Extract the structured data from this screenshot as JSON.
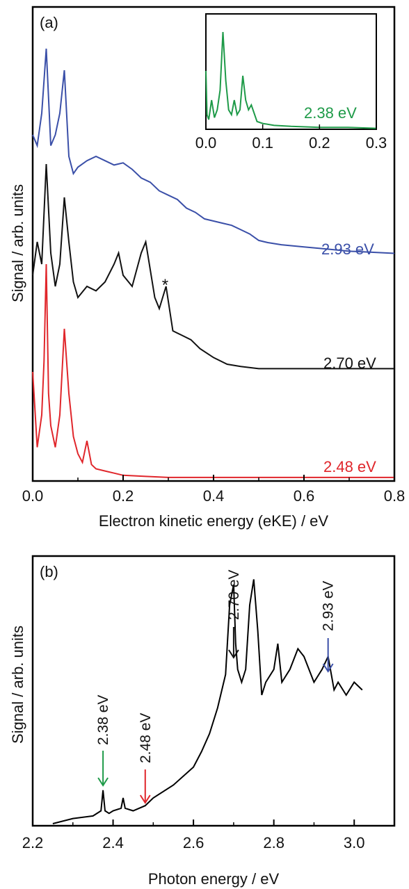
{
  "chart_data": [
    {
      "panel": "(a)",
      "type": "line",
      "xlabel": "Electron kinetic energy (eKE) / eV",
      "ylabel": "Signal / arb. units",
      "xlim": [
        0.0,
        0.8
      ],
      "xticks": [
        "0.0",
        "0.2",
        "0.4",
        "0.6",
        "0.8"
      ],
      "annotation": "*",
      "annotation_x": 0.295,
      "colors": {
        "2.93 eV": "#3a4fa8",
        "2.70 eV": "#111111",
        "2.48 eV": "#e0262b"
      },
      "series": [
        {
          "name": "2.93 eV",
          "x": [
            0.0,
            0.01,
            0.02,
            0.03,
            0.04,
            0.05,
            0.06,
            0.07,
            0.08,
            0.09,
            0.1,
            0.12,
            0.14,
            0.16,
            0.18,
            0.2,
            0.22,
            0.24,
            0.26,
            0.28,
            0.3,
            0.32,
            0.34,
            0.36,
            0.38,
            0.4,
            0.42,
            0.44,
            0.46,
            0.48,
            0.5,
            0.52,
            0.55,
            0.6,
            0.65,
            0.7,
            0.75,
            0.8
          ],
          "y": [
            0.6,
            0.55,
            0.7,
            1.0,
            0.55,
            0.6,
            0.7,
            0.9,
            0.5,
            0.42,
            0.45,
            0.48,
            0.5,
            0.48,
            0.46,
            0.47,
            0.44,
            0.4,
            0.38,
            0.34,
            0.32,
            0.3,
            0.26,
            0.24,
            0.21,
            0.2,
            0.19,
            0.18,
            0.16,
            0.14,
            0.11,
            0.1,
            0.09,
            0.08,
            0.07,
            0.06,
            0.055,
            0.05
          ]
        },
        {
          "name": "2.70 eV",
          "x": [
            0.0,
            0.01,
            0.02,
            0.03,
            0.04,
            0.05,
            0.06,
            0.07,
            0.08,
            0.09,
            0.1,
            0.12,
            0.14,
            0.16,
            0.18,
            0.19,
            0.2,
            0.22,
            0.24,
            0.25,
            0.27,
            0.28,
            0.295,
            0.31,
            0.33,
            0.35,
            0.37,
            0.4,
            0.43,
            0.46,
            0.5,
            0.55,
            0.6,
            0.65,
            0.7,
            0.75,
            0.8
          ],
          "y": [
            0.45,
            0.6,
            0.5,
            0.95,
            0.55,
            0.4,
            0.5,
            0.8,
            0.6,
            0.42,
            0.35,
            0.4,
            0.38,
            0.42,
            0.5,
            0.55,
            0.45,
            0.4,
            0.55,
            0.6,
            0.35,
            0.3,
            0.4,
            0.2,
            0.18,
            0.16,
            0.12,
            0.08,
            0.05,
            0.04,
            0.03,
            0.03,
            0.03,
            0.03,
            0.03,
            0.03,
            0.03
          ]
        },
        {
          "name": "2.48 eV",
          "x": [
            0.0,
            0.01,
            0.02,
            0.025,
            0.03,
            0.035,
            0.04,
            0.05,
            0.06,
            0.07,
            0.08,
            0.09,
            0.1,
            0.11,
            0.12,
            0.13,
            0.14,
            0.16,
            0.18,
            0.2,
            0.25,
            0.3,
            0.4,
            0.5,
            0.6,
            0.7,
            0.8
          ],
          "y": [
            0.5,
            0.15,
            0.3,
            0.55,
            1.0,
            0.4,
            0.25,
            0.15,
            0.3,
            0.7,
            0.4,
            0.2,
            0.12,
            0.08,
            0.18,
            0.07,
            0.05,
            0.04,
            0.03,
            0.02,
            0.015,
            0.01,
            0.01,
            0.01,
            0.01,
            0.01,
            0.01
          ]
        }
      ],
      "inset": {
        "type": "line",
        "xlim": [
          0.0,
          0.3
        ],
        "xticks": [
          "0.0",
          "0.1",
          "0.2",
          "0.3"
        ],
        "series": [
          {
            "name": "2.38 eV",
            "color": "#1e9a48",
            "x": [
              0.0,
              0.002,
              0.005,
              0.01,
              0.015,
              0.02,
              0.025,
              0.03,
              0.035,
              0.04,
              0.045,
              0.05,
              0.055,
              0.06,
              0.065,
              0.07,
              0.075,
              0.08,
              0.09,
              0.1,
              0.12,
              0.15,
              0.2,
              0.25,
              0.3
            ],
            "y": [
              0.6,
              0.15,
              0.1,
              0.3,
              0.12,
              0.2,
              0.4,
              1.0,
              0.5,
              0.2,
              0.15,
              0.3,
              0.15,
              0.2,
              0.55,
              0.3,
              0.2,
              0.25,
              0.08,
              0.06,
              0.04,
              0.03,
              0.02,
              0.02,
              0.01
            ]
          }
        ]
      }
    },
    {
      "panel": "(b)",
      "type": "line",
      "xlabel": "Photon energy / eV",
      "ylabel": "Signal / arb. units",
      "xlim": [
        2.2,
        3.1
      ],
      "xticks": [
        "2.2",
        "2.4",
        "2.6",
        "2.8",
        "3.0"
      ],
      "series": [
        {
          "x": [
            2.25,
            2.3,
            2.35,
            2.37,
            2.375,
            2.38,
            2.39,
            2.4,
            2.42,
            2.425,
            2.43,
            2.45,
            2.48,
            2.5,
            2.55,
            2.6,
            2.62,
            2.64,
            2.66,
            2.68,
            2.69,
            2.7,
            2.705,
            2.71,
            2.72,
            2.73,
            2.74,
            2.75,
            2.76,
            2.77,
            2.78,
            2.8,
            2.81,
            2.82,
            2.84,
            2.86,
            2.875,
            2.9,
            2.92,
            2.935,
            2.95,
            2.96,
            2.98,
            3.0,
            3.02
          ],
          "y": [
            0.0,
            0.02,
            0.03,
            0.05,
            0.13,
            0.05,
            0.04,
            0.05,
            0.06,
            0.1,
            0.06,
            0.05,
            0.07,
            0.1,
            0.15,
            0.22,
            0.28,
            0.35,
            0.45,
            0.58,
            0.85,
            0.93,
            0.7,
            0.6,
            0.55,
            0.6,
            0.85,
            0.95,
            0.75,
            0.5,
            0.55,
            0.6,
            0.7,
            0.55,
            0.6,
            0.68,
            0.65,
            0.55,
            0.6,
            0.65,
            0.52,
            0.55,
            0.5,
            0.55,
            0.52
          ]
        }
      ],
      "markers": [
        {
          "label": "2.38 eV",
          "x": 2.375,
          "color": "#1e9a48"
        },
        {
          "label": "2.48 eV",
          "x": 2.48,
          "color": "#e0262b"
        },
        {
          "label": "2.70 eV",
          "x": 2.7,
          "color": "#111111"
        },
        {
          "label": "2.93 eV",
          "x": 2.935,
          "color": "#3a4fa8"
        }
      ]
    }
  ]
}
